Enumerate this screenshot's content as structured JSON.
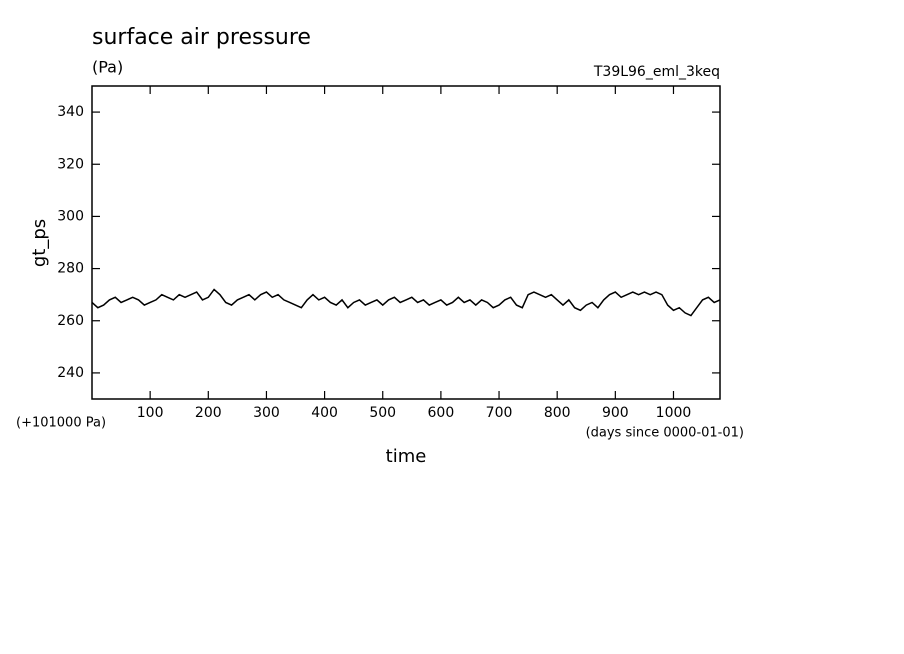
{
  "chart_data": {
    "type": "line",
    "title": "surface air pressure",
    "units": "(Pa)",
    "run_label": "T39L96_eml_3keq",
    "x_label": "time",
    "y_label": "gt_ps",
    "y_offset_label": "(+101000 Pa)",
    "x_units_label": "(days since 0000-01-01)",
    "xlim": [
      0,
      1080
    ],
    "xticks": [
      100,
      200,
      300,
      400,
      500,
      600,
      700,
      800,
      900,
      1000
    ],
    "ylim": [
      230,
      350
    ],
    "yticks": [
      240,
      260,
      280,
      300,
      320,
      340
    ],
    "x": [
      0,
      10,
      20,
      30,
      40,
      50,
      60,
      70,
      80,
      90,
      100,
      110,
      120,
      130,
      140,
      150,
      160,
      170,
      180,
      190,
      200,
      210,
      220,
      230,
      240,
      250,
      260,
      270,
      280,
      290,
      300,
      310,
      320,
      330,
      340,
      350,
      360,
      370,
      380,
      390,
      400,
      410,
      420,
      430,
      440,
      450,
      460,
      470,
      480,
      490,
      500,
      510,
      520,
      530,
      540,
      550,
      560,
      570,
      580,
      590,
      600,
      610,
      620,
      630,
      640,
      650,
      660,
      670,
      680,
      690,
      700,
      710,
      720,
      730,
      740,
      750,
      760,
      770,
      780,
      790,
      800,
      810,
      820,
      830,
      840,
      850,
      860,
      870,
      880,
      890,
      900,
      910,
      920,
      930,
      940,
      950,
      960,
      970,
      980,
      990,
      1000,
      1010,
      1020,
      1030,
      1040,
      1050,
      1060,
      1070,
      1080
    ],
    "series": [
      {
        "color": "#000000",
        "values": [
          267,
          265,
          266,
          268,
          269,
          267,
          268,
          269,
          268,
          266,
          267,
          268,
          270,
          269,
          268,
          270,
          269,
          270,
          271,
          268,
          269,
          272,
          270,
          267,
          266,
          268,
          269,
          270,
          268,
          270,
          271,
          269,
          270,
          268,
          267,
          266,
          265,
          268,
          270,
          268,
          269,
          267,
          266,
          268,
          265,
          267,
          268,
          266,
          267,
          268,
          266,
          268,
          269,
          267,
          268,
          269,
          267,
          268,
          266,
          267,
          268,
          266,
          267,
          269,
          267,
          268,
          266,
          268,
          267,
          265,
          266,
          268,
          269,
          266,
          265,
          270,
          271,
          270,
          269,
          270,
          268,
          266,
          268,
          265,
          264,
          266,
          267,
          265,
          268,
          270,
          271,
          269,
          270,
          271,
          270,
          271,
          270,
          271,
          270,
          266,
          264,
          265,
          263,
          262,
          265,
          268,
          269,
          267,
          268
        ]
      }
    ]
  }
}
